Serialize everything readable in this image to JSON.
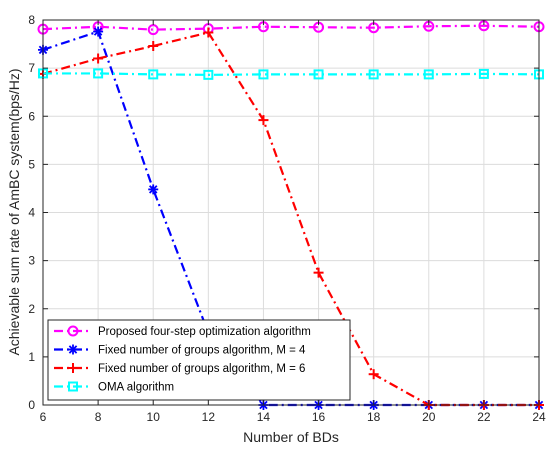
{
  "chart_data": {
    "type": "line",
    "xlabel": "Number of BDs",
    "ylabel": "Achievable sum rate of AmBC system(bps/Hz)",
    "xlim": [
      6,
      24
    ],
    "ylim": [
      0,
      8
    ],
    "xticks": [
      "6",
      "8",
      "10",
      "12",
      "14",
      "16",
      "18",
      "20",
      "22",
      "24"
    ],
    "yticks": [
      "0",
      "1",
      "2",
      "3",
      "4",
      "5",
      "6",
      "7",
      "8"
    ],
    "grid": true,
    "legend_position": "bottom-left",
    "series": [
      {
        "name": "Proposed four-step optimization algorithm",
        "color": "#ff00ff",
        "marker": "circle",
        "line_style": "dash-dot",
        "x": [
          6,
          8,
          10,
          12,
          14,
          16,
          18,
          20,
          22,
          24
        ],
        "values": [
          7.81,
          7.86,
          7.8,
          7.82,
          7.86,
          7.85,
          7.84,
          7.87,
          7.88,
          7.86
        ]
      },
      {
        "name": "Fixed number of groups algorithm, M = 4",
        "color": "#0000ff",
        "marker": "star",
        "line_style": "dash-dot",
        "x": [
          6,
          8,
          10,
          12,
          14,
          16,
          18,
          20,
          22,
          24
        ],
        "values": [
          7.38,
          7.76,
          4.48,
          1.5,
          0,
          0,
          0,
          0,
          0,
          0
        ]
      },
      {
        "name": "Fixed number of groups algorithm, M = 6",
        "color": "#ff0000",
        "marker": "plus",
        "line_style": "dash-dot",
        "x": [
          6,
          8,
          10,
          12,
          14,
          16,
          18,
          20,
          22,
          24
        ],
        "values": [
          6.88,
          7.2,
          7.46,
          7.74,
          5.92,
          2.75,
          0.64,
          0,
          0,
          0
        ]
      },
      {
        "name": "OMA algorithm",
        "color": "#00ffff",
        "marker": "square",
        "line_style": "dash-dot",
        "x": [
          6,
          8,
          10,
          12,
          14,
          16,
          18,
          20,
          22,
          24
        ],
        "values": [
          6.89,
          6.89,
          6.87,
          6.86,
          6.87,
          6.87,
          6.87,
          6.87,
          6.88,
          6.87
        ]
      }
    ]
  }
}
